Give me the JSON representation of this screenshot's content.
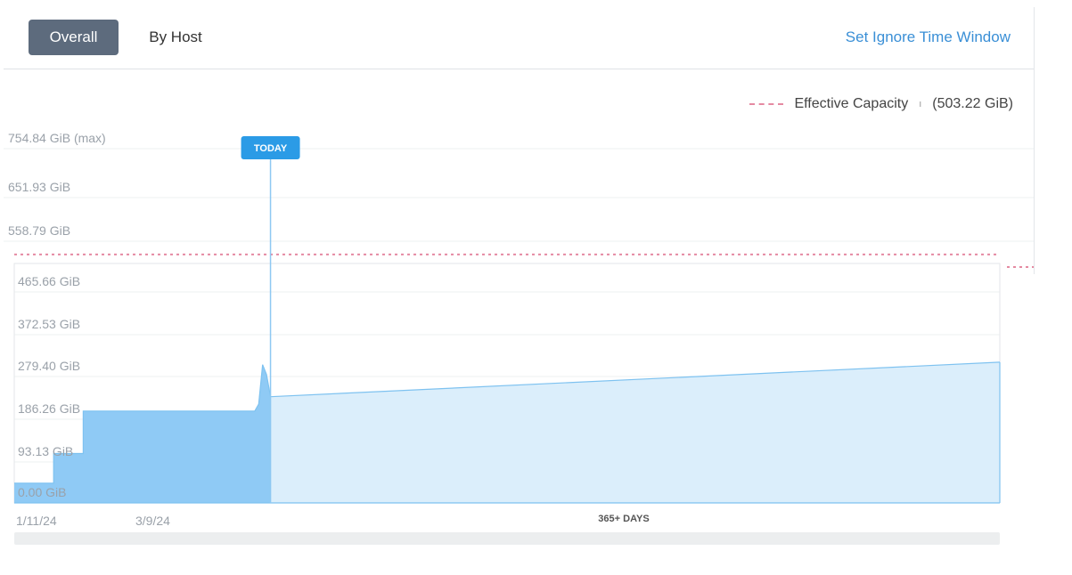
{
  "tabs": {
    "overall": "Overall",
    "by_host": "By Host",
    "active": "overall"
  },
  "actions": {
    "set_ignore_time_window": "Set Ignore Time Window"
  },
  "legend": {
    "label": "Effective Capacity",
    "separator": "ı",
    "value": "(503.22 GiB)"
  },
  "chart_data": {
    "type": "area",
    "y_unit": "GiB",
    "ylim": [
      0,
      754.84
    ],
    "y_ticks": [
      {
        "value": 754.84,
        "label": "754.84 GiB (max)"
      },
      {
        "value": 651.93,
        "label": "651.93 GiB"
      },
      {
        "value": 558.79,
        "label": "558.79 GiB"
      },
      {
        "value": 465.66,
        "label": "465.66 GiB"
      },
      {
        "value": 372.53,
        "label": "372.53 GiB"
      },
      {
        "value": 279.4,
        "label": "279.40 GiB"
      },
      {
        "value": 186.26,
        "label": "186.26 GiB"
      },
      {
        "value": 93.13,
        "label": "93.13 GiB"
      },
      {
        "value": 0.0,
        "label": "0.00 GiB"
      }
    ],
    "x_labels": [
      "1/11/24",
      "3/9/24"
    ],
    "horizon_label": "365+ DAYS",
    "today_label": "TODAY",
    "grid": true,
    "effective_capacity": 503.22,
    "series": [
      {
        "kind": "historical",
        "color": "#8fcaf5",
        "points": [
          {
            "t": 0,
            "v": 40
          },
          {
            "t": 0.04,
            "v": 40
          },
          {
            "t": 0.04,
            "v": 100
          },
          {
            "t": 0.07,
            "v": 100
          },
          {
            "t": 0.07,
            "v": 186
          },
          {
            "t": 0.244,
            "v": 186
          },
          {
            "t": 0.248,
            "v": 200
          },
          {
            "t": 0.252,
            "v": 280
          },
          {
            "t": 0.256,
            "v": 260
          },
          {
            "t": 0.26,
            "v": 215
          }
        ]
      },
      {
        "kind": "forecast",
        "color": "#dbeefb",
        "points": [
          {
            "t": 0.26,
            "v": 215
          },
          {
            "t": 1.0,
            "v": 285
          }
        ]
      }
    ],
    "colors": {
      "capacity_line": "#e58aa2",
      "today_marker": "#2b9be6",
      "line": "#7ec2f0"
    }
  }
}
